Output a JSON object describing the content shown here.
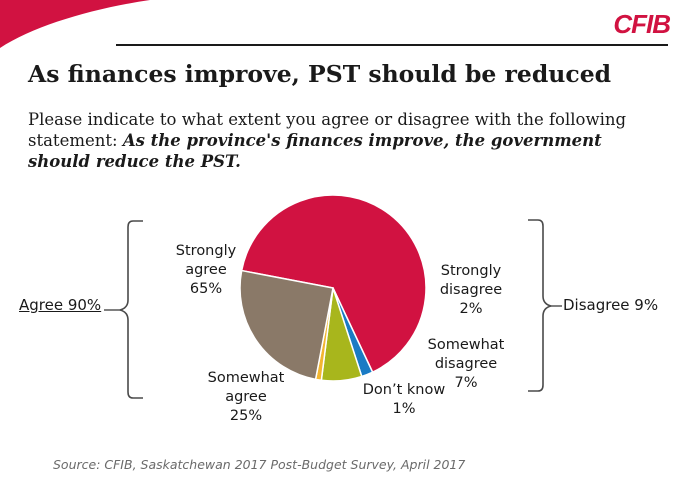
{
  "brand": {
    "logo": "CFIB",
    "accent": "#d11241"
  },
  "title": "As finances improve, PST should be reduced",
  "question": {
    "lead": "Please indicate to what extent you agree or disagree with the following statement: ",
    "statement": "As the province's finances improve, the government should reduce the PST."
  },
  "chart_data": {
    "type": "pie",
    "title": "As finances improve, PST should be reduced",
    "slices": [
      {
        "label_lines": [
          "Strongly",
          "agree",
          "65%"
        ],
        "label": "Strongly agree",
        "value": 65,
        "color": "#d11241"
      },
      {
        "label_lines": [
          "Strongly",
          "disagree",
          "2%"
        ],
        "label": "Strongly disagree",
        "value": 2,
        "color": "#1a7bc4"
      },
      {
        "label_lines": [
          "Somewhat",
          "disagree",
          "7%"
        ],
        "label": "Somewhat disagree",
        "value": 7,
        "color": "#a8b61c"
      },
      {
        "label_lines": [
          "Don’t know",
          "1%"
        ],
        "label": "Don't know",
        "value": 1,
        "color": "#f2b631"
      },
      {
        "label_lines": [
          "Somewhat",
          "agree",
          "25%"
        ],
        "label": "Somewhat agree",
        "value": 25,
        "color": "#8a7968"
      }
    ],
    "groups": [
      {
        "label": "Agree 90%",
        "value": 90
      },
      {
        "label": "Disagree 9%",
        "value": 9
      }
    ]
  },
  "source": "Source: CFIB, Saskatchewan 2017 Post-Budget Survey, April 2017"
}
